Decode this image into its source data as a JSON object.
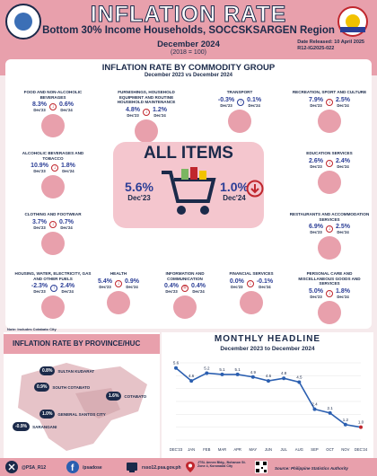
{
  "header": {
    "title": "INFLATION RATE",
    "subtitle": "Bottom 30% Income Households, SOCCSKSARGEN Region",
    "period": "December 2024",
    "base": "(2018 = 100)",
    "released": "Date Released: 10 April 2025",
    "ref": "R12-IG2025-022"
  },
  "section": {
    "title": "INFLATION RATE BY COMMODITY GROUP",
    "subtitle": "December 2023 vs December 2024"
  },
  "labels": {
    "dec23": "Dec'23",
    "dec24": "Dec'24"
  },
  "categories": [
    {
      "name": "FOOD AND NON-ALCOHOLIC BEVERAGES",
      "v23": "8.3%",
      "v24": "0.6%",
      "dir": "down"
    },
    {
      "name": "FURNISHINGS, HOUSEHOLD EQUIPMENT AND ROUTINE HOUSEHOLD MAINTENANCE",
      "v23": "4.8%",
      "v24": "1.2%",
      "dir": "down"
    },
    {
      "name": "TRANSPORT",
      "v23": "-0.3%",
      "v24": "0.1%",
      "dir": "up"
    },
    {
      "name": "RECREATION, SPORT AND CULTURE",
      "v23": "7.9%",
      "v24": "2.5%",
      "dir": "down"
    },
    {
      "name": "ALCOHOLIC BEVERAGES AND TOBACCO",
      "v23": "10.9%",
      "v24": "1.8%",
      "dir": "down"
    },
    {
      "name": "EDUCATION SERVICES",
      "v23": "2.6%",
      "v24": "2.4%",
      "dir": "down"
    },
    {
      "name": "CLOTHING AND FOOTWEAR",
      "v23": "3.7%",
      "v24": "0.7%",
      "dir": "down"
    },
    {
      "name": "RESTAURANTS AND ACCOMMODATION SERVICES",
      "v23": "6.9%",
      "v24": "2.5%",
      "dir": "down"
    },
    {
      "name": "HOUSING, WATER, ELECTRICITY, GAS AND OTHER FUELS",
      "v23": "-2.3%",
      "v24": "2.4%",
      "dir": "up"
    },
    {
      "name": "HEALTH",
      "v23": "5.4%",
      "v24": "0.9%",
      "dir": "down"
    },
    {
      "name": "INFORMATION AND COMMUNICATION",
      "v23": "0.4%",
      "v24": "0.4%",
      "dir": "same"
    },
    {
      "name": "FINANCIAL SERVICES",
      "v23": "0.0%",
      "v24": "-0.1%",
      "dir": "down"
    },
    {
      "name": "PERSONAL CARE AND MISCELLANEOUS GOODS AND SERVICES",
      "v23": "5.0%",
      "v24": "1.8%",
      "dir": "down"
    }
  ],
  "all_items": {
    "title": "ALL ITEMS",
    "v23": "5.6%",
    "v24": "1.0%"
  },
  "note": "Note: Includes Cotabato City",
  "province": {
    "title": "INFLATION RATE BY PROVINCE/HUC",
    "items": [
      {
        "name": "SULTAN KUDARAT",
        "value": "0.8%"
      },
      {
        "name": "SOUTH COTABATO",
        "value": "0.9%"
      },
      {
        "name": "COTABATO",
        "value": "1.6%"
      },
      {
        "name": "GENERAL SANTOS CITY",
        "value": "1.0%"
      },
      {
        "name": "SARANGANI",
        "value": "-0.9%"
      }
    ]
  },
  "monthly": {
    "title": "MONTHLY HEADLINE",
    "subtitle": "December 2023 to December 2024"
  },
  "chart_data": {
    "type": "line",
    "title": "MONTHLY HEADLINE",
    "categories": [
      "DEC'23",
      "JAN",
      "FEB",
      "MAR",
      "APR",
      "MAY",
      "JUN",
      "JUL",
      "AUG",
      "SEP",
      "OCT",
      "NOV",
      "DEC'24"
    ],
    "values": [
      5.6,
      4.6,
      5.2,
      5.1,
      5.1,
      4.9,
      4.6,
      4.8,
      4.5,
      2.4,
      2.1,
      1.2,
      1.0
    ],
    "ylim": [
      0,
      6
    ]
  },
  "footer": {
    "twitter": "@PSA_R12",
    "facebook": "/psadose",
    "web": "rsso12.psa.gov.ph",
    "address": "JTSL Annex Bldg., Bohanon St. Zone 4, Koronadal City",
    "source": "Source: Philippine Statistics Authority"
  },
  "colors": {
    "brand": "#e8a0ac",
    "navy": "#1b2a4a",
    "down": "#c0262d",
    "line": "#2b5fb0"
  }
}
